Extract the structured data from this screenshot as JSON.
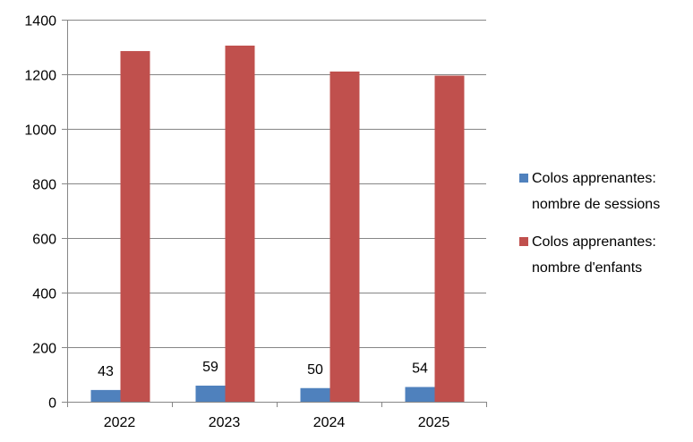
{
  "chart_data": {
    "type": "bar",
    "title": "",
    "xlabel": "",
    "ylabel": "",
    "categories": [
      "2022",
      "2023",
      "2024",
      "2025"
    ],
    "ylim": [
      0,
      1400
    ],
    "yticks": [
      0,
      200,
      400,
      600,
      800,
      1000,
      1200,
      1400
    ],
    "grid": true,
    "legend_position": "right",
    "series": [
      {
        "name_lines": [
          "Colos apprenantes:",
          "nombre de sessions"
        ],
        "color": "#4f81bd",
        "values": [
          43,
          59,
          50,
          54
        ],
        "data_labels": [
          "43",
          "59",
          "50",
          "54"
        ]
      },
      {
        "name_lines": [
          "Colos apprenantes:",
          "nombre d'enfants"
        ],
        "color": "#c0504d",
        "values": [
          1285,
          1305,
          1210,
          1195
        ]
      }
    ]
  }
}
